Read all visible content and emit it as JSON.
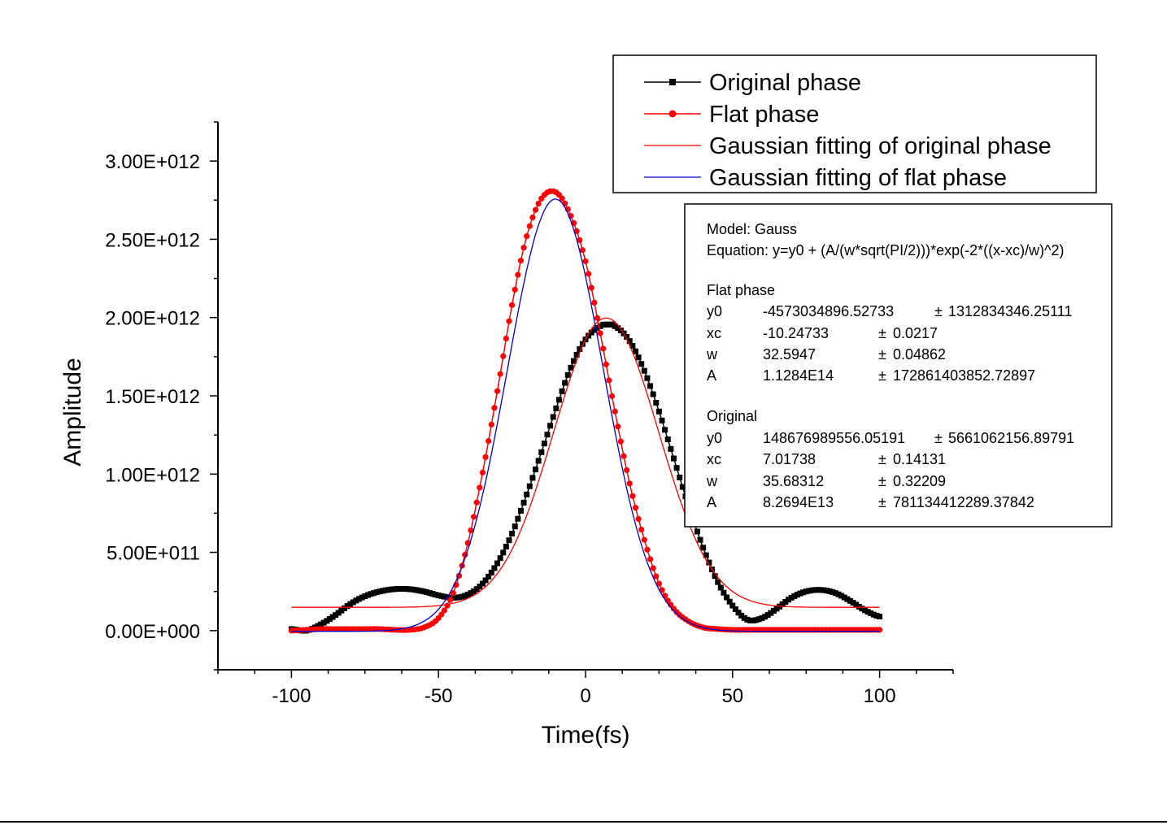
{
  "chart_data": {
    "type": "line",
    "title": "",
    "xlabel": "Time(fs)",
    "ylabel": "Amplitude",
    "xlim": [
      -125,
      125
    ],
    "ylim": [
      -250000000000,
      3250000000000
    ],
    "x_ticks": [
      -100,
      -50,
      0,
      50,
      100
    ],
    "x_tick_labels": [
      "-100",
      "-50",
      "0",
      "50",
      "100"
    ],
    "y_ticks": [
      0,
      500000000000,
      1000000000000,
      1500000000000,
      2000000000000,
      2500000000000,
      3000000000000
    ],
    "y_tick_labels": [
      "0.00E+000",
      "5.00E+011",
      "1.00E+012",
      "1.50E+012",
      "2.00E+012",
      "2.50E+012",
      "3.00E+012"
    ],
    "grid": false,
    "legend_position": "top-right",
    "series": [
      {
        "name": "Original phase",
        "color": "#000000",
        "marker": "square",
        "x": [
          -100,
          -95,
          -90,
          -85,
          -80,
          -75,
          -70,
          -65,
          -60,
          -55,
          -50,
          -45,
          -40,
          -35,
          -30,
          -25,
          -20,
          -15,
          -10,
          -5,
          0,
          5,
          8,
          10,
          15,
          20,
          25,
          30,
          35,
          40,
          45,
          50,
          55,
          60,
          65,
          70,
          75,
          80,
          85,
          90,
          95,
          100
        ],
        "y": [
          10000000000,
          0,
          40000000000,
          100000000000,
          170000000000,
          220000000000,
          250000000000,
          265000000000,
          265000000000,
          250000000000,
          225000000000,
          210000000000,
          230000000000,
          300000000000,
          430000000000,
          620000000000,
          870000000000,
          1140000000000,
          1420000000000,
          1680000000000,
          1860000000000,
          1945000000000,
          1955000000000,
          1945000000000,
          1850000000000,
          1660000000000,
          1400000000000,
          1100000000000,
          800000000000,
          530000000000,
          310000000000,
          160000000000,
          70000000000,
          80000000000,
          140000000000,
          210000000000,
          250000000000,
          260000000000,
          240000000000,
          190000000000,
          130000000000,
          90000000000
        ]
      },
      {
        "name": "Flat phase",
        "color": "#ff0000",
        "marker": "circle",
        "x": [
          -100,
          -95,
          -90,
          -85,
          -80,
          -75,
          -70,
          -65,
          -60,
          -55,
          -50,
          -45,
          -40,
          -35,
          -30,
          -25,
          -20,
          -15,
          -10,
          -5,
          0,
          5,
          10,
          15,
          20,
          25,
          30,
          35,
          40,
          45,
          50,
          55,
          60,
          65,
          70,
          75,
          80,
          85,
          90,
          95,
          100
        ],
        "y": [
          0,
          5000000000,
          10000000000,
          10000000000,
          10000000000,
          10000000000,
          10000000000,
          5000000000,
          5000000000,
          20000000000,
          80000000000,
          240000000000,
          560000000000,
          1010000000000,
          1530000000000,
          2080000000000,
          2520000000000,
          2760000000000,
          2800000000000,
          2650000000000,
          2360000000000,
          1900000000000,
          1400000000000,
          940000000000,
          580000000000,
          300000000000,
          140000000000,
          60000000000,
          20000000000,
          10000000000,
          5000000000,
          5000000000,
          5000000000,
          5000000000,
          5000000000,
          5000000000,
          5000000000,
          5000000000,
          5000000000,
          5000000000,
          5000000000
        ]
      },
      {
        "name": "Gaussian fitting of original phase",
        "color": "#ff0000",
        "marker": "none",
        "fit": {
          "y0": 148676989556.0519,
          "xc": 7.01738,
          "w": 35.68312,
          "A": 82694000000000
        }
      },
      {
        "name": "Gaussian fitting of flat phase",
        "color": "#0000cc",
        "marker": "none",
        "fit": {
          "y0": -4573034896.52733,
          "xc": -10.24733,
          "w": 32.5947,
          "A": 112840000000000
        }
      }
    ]
  },
  "fit_box": {
    "model": "Model: Gauss",
    "equation": "Equation: y=y0 + (A/(w*sqrt(PI/2)))*exp(-2*((x-xc)/w)^2)",
    "groups": [
      {
        "title": "Flat phase",
        "rows": [
          {
            "param": "y0",
            "value": "-4573034896.52733",
            "error": "1312834346.25111"
          },
          {
            "param": "xc",
            "value": "-10.24733",
            "error": "0.0217"
          },
          {
            "param": "w",
            "value": "32.5947",
            "error": "0.04862"
          },
          {
            "param": "A",
            "value": "1.1284E14",
            "error": "172861403852.72897"
          }
        ]
      },
      {
        "title": "Original",
        "rows": [
          {
            "param": "y0",
            "value": "148676989556.05191",
            "error": "5661062156.89791"
          },
          {
            "param": "xc",
            "value": "7.01738",
            "error": "0.14131"
          },
          {
            "param": "w",
            "value": "35.68312",
            "error": "0.32209"
          },
          {
            "param": "A",
            "value": "8.2694E13",
            "error": "781134412289.37842"
          }
        ]
      }
    ],
    "pm_symbol": "±"
  }
}
